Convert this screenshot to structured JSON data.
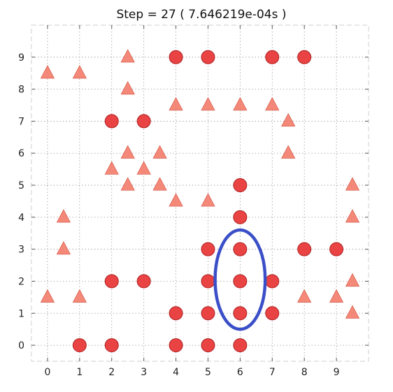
{
  "chart_data": {
    "type": "scatter",
    "title": "Step = 27  ( 7.646219e-04s )",
    "xlabel": "",
    "ylabel": "",
    "xlim": [
      -0.5,
      10
    ],
    "ylim": [
      -0.5,
      10
    ],
    "x_ticks": [
      0,
      1,
      2,
      3,
      4,
      5,
      6,
      7,
      8,
      9
    ],
    "y_ticks": [
      0,
      1,
      2,
      3,
      4,
      5,
      6,
      7,
      8,
      9
    ],
    "grid": true,
    "series": [
      {
        "marker": "circle",
        "color": "#e8393a",
        "points": [
          [
            1,
            0
          ],
          [
            2,
            0
          ],
          [
            4,
            0
          ],
          [
            5,
            0
          ],
          [
            6,
            0
          ],
          [
            4,
            1
          ],
          [
            5,
            1
          ],
          [
            6,
            1
          ],
          [
            7,
            1
          ],
          [
            2,
            2
          ],
          [
            3,
            2
          ],
          [
            5,
            2
          ],
          [
            6,
            2
          ],
          [
            7,
            2
          ],
          [
            5,
            3
          ],
          [
            6,
            3
          ],
          [
            8,
            3
          ],
          [
            9,
            3
          ],
          [
            6,
            4
          ],
          [
            6,
            5
          ],
          [
            2,
            7
          ],
          [
            3,
            7
          ],
          [
            4,
            9
          ],
          [
            5,
            9
          ],
          [
            7,
            9
          ],
          [
            8,
            9
          ]
        ]
      },
      {
        "marker": "triangle",
        "color": "#f47c6a",
        "points": [
          [
            -0.0,
            8.5
          ],
          [
            1.0,
            8.5
          ],
          [
            2.5,
            9.0
          ],
          [
            2.5,
            8.0
          ],
          [
            4.0,
            7.5
          ],
          [
            5.0,
            7.5
          ],
          [
            6.0,
            7.5
          ],
          [
            7.0,
            7.5
          ],
          [
            7.5,
            7.0
          ],
          [
            2.5,
            6.0
          ],
          [
            3.5,
            6.0
          ],
          [
            7.5,
            6.0
          ],
          [
            2.0,
            5.5
          ],
          [
            3.0,
            5.5
          ],
          [
            2.5,
            5.0
          ],
          [
            3.5,
            5.0
          ],
          [
            4.0,
            4.5
          ],
          [
            5.0,
            4.5
          ],
          [
            9.5,
            5.0
          ],
          [
            9.5,
            4.0
          ],
          [
            0.5,
            4.0
          ],
          [
            0.5,
            3.0
          ],
          [
            0.0,
            1.5
          ],
          [
            1.0,
            1.5
          ],
          [
            8.0,
            1.5
          ],
          [
            9.0,
            1.5
          ],
          [
            9.5,
            2.0
          ],
          [
            9.5,
            1.0
          ]
        ]
      }
    ],
    "annotations": [
      {
        "shape": "ellipse",
        "center": [
          6,
          2.05
        ],
        "rx": 0.78,
        "ry": 1.55,
        "color": "#3a4fc8"
      }
    ]
  }
}
